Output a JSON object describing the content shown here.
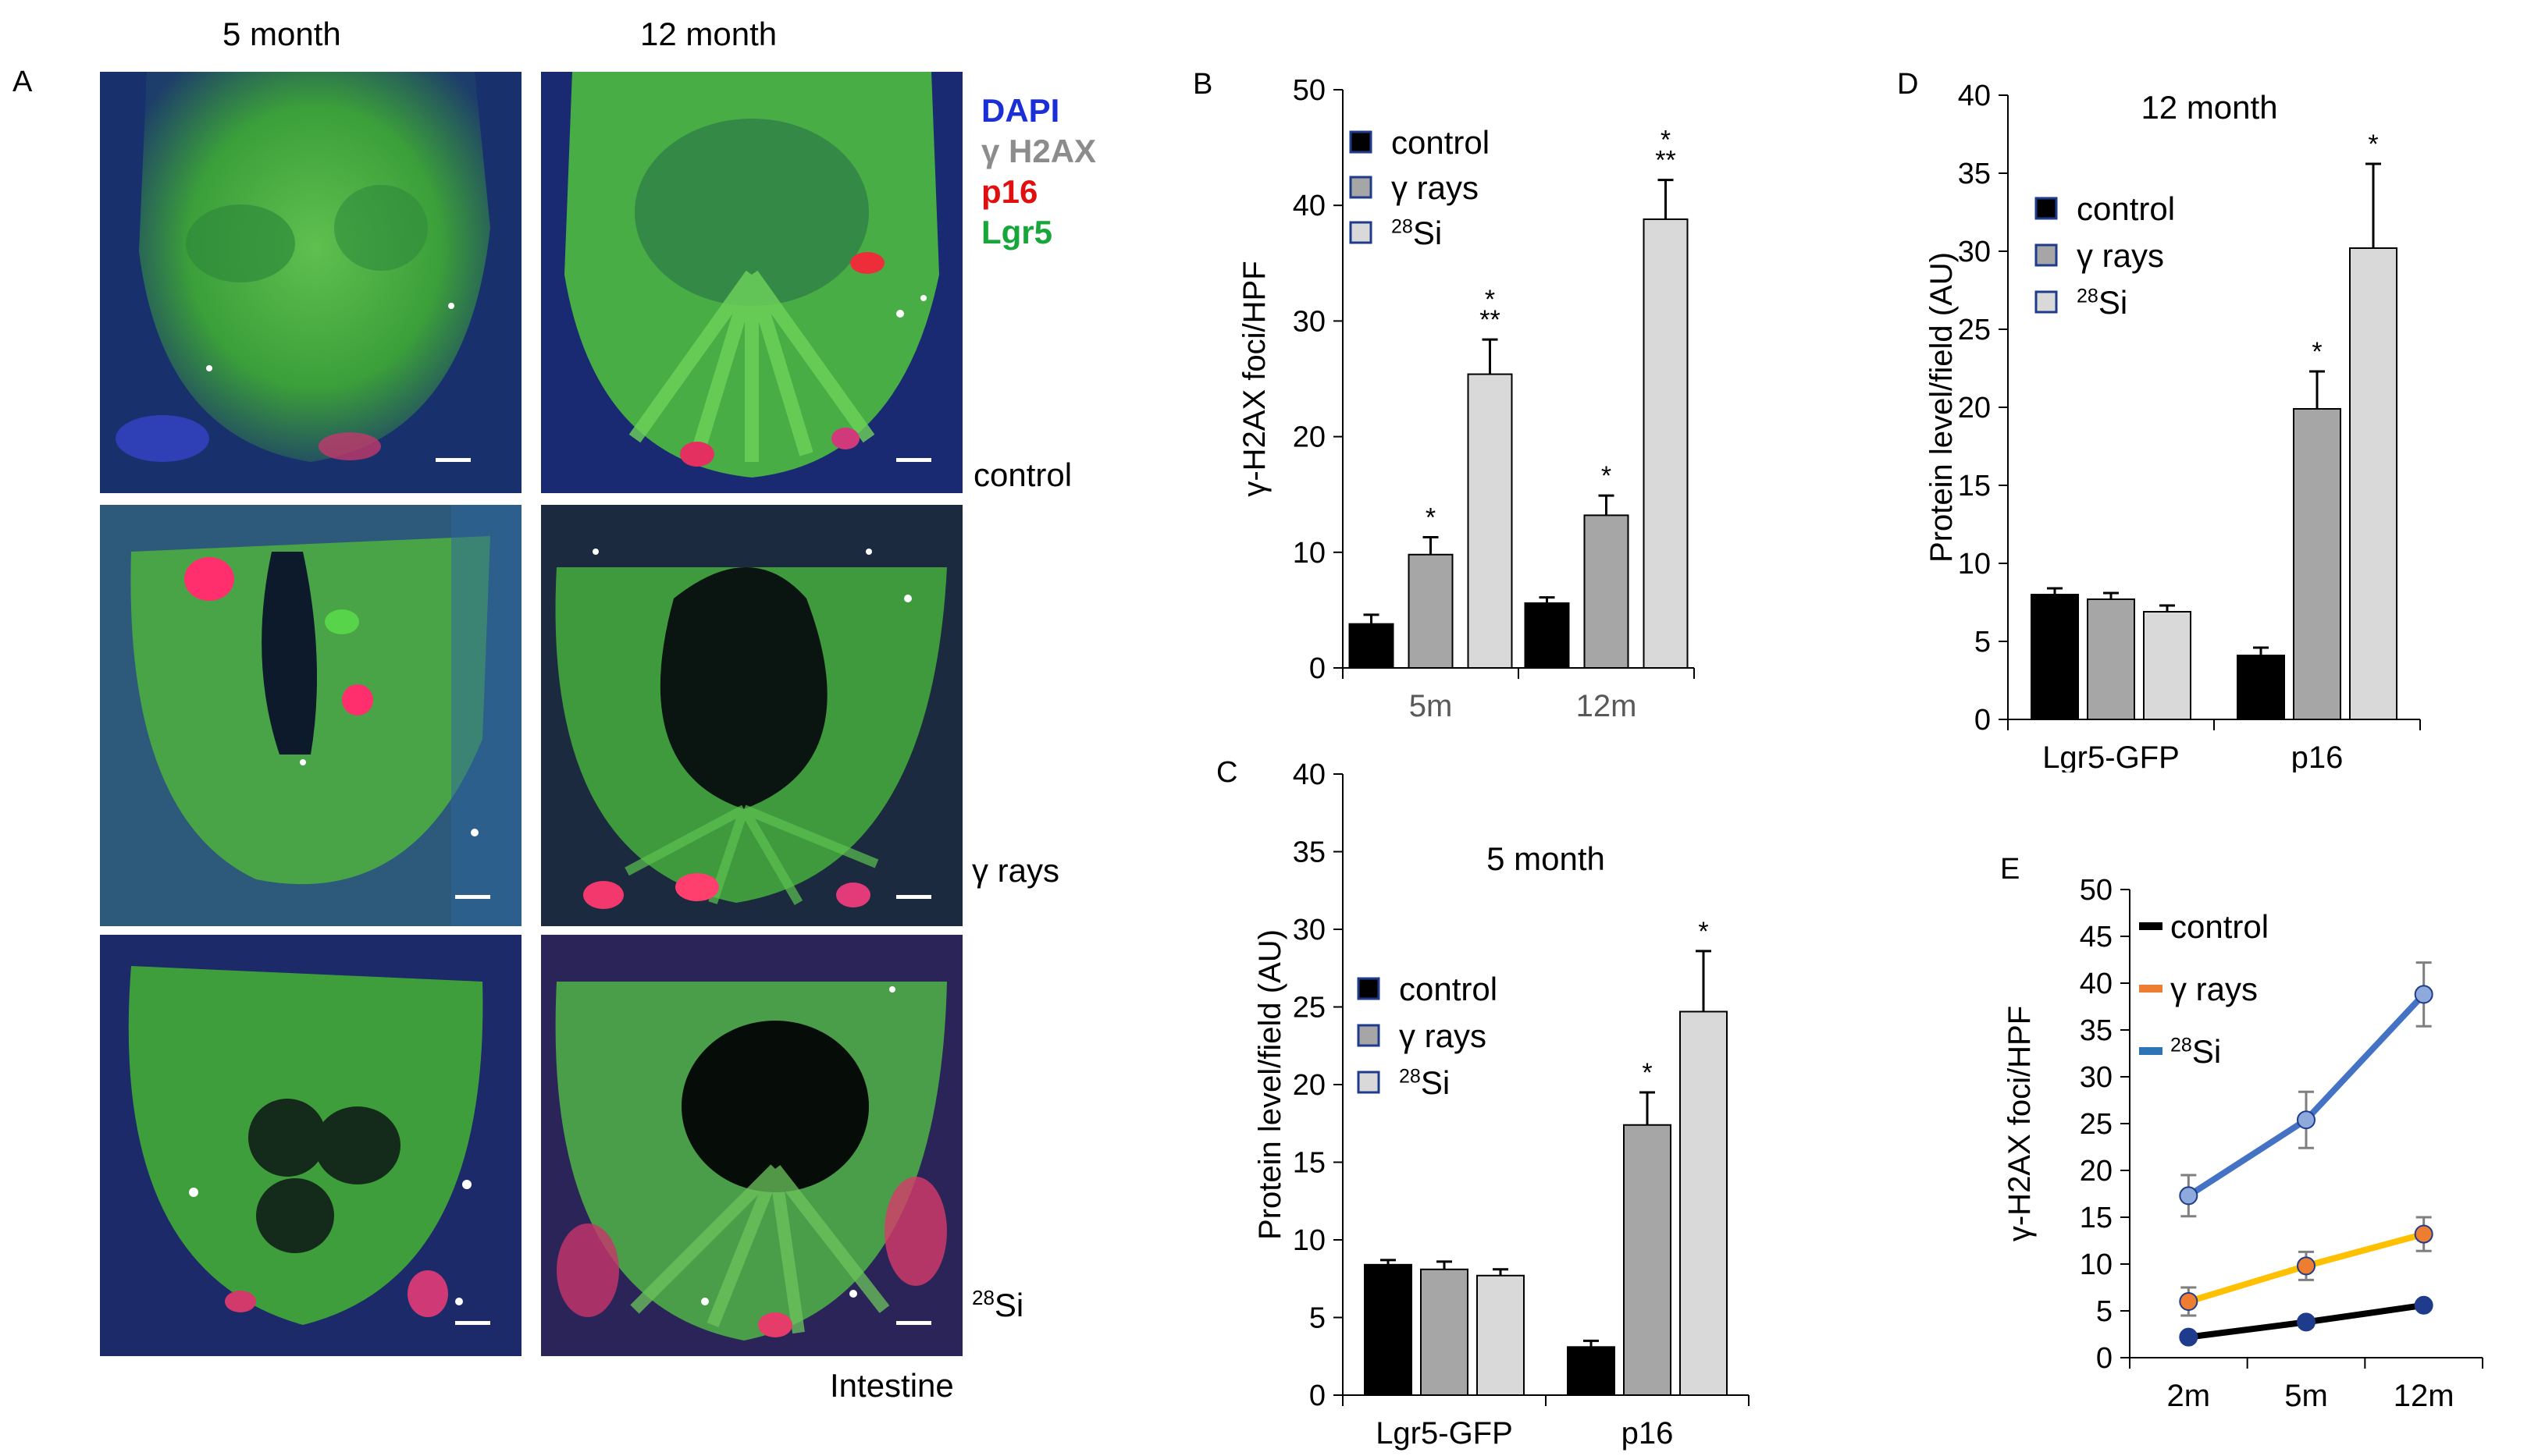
{
  "panel_a": {
    "panel_letter": "A",
    "column_titles": [
      "5 month",
      "12 month"
    ],
    "stain_legend": [
      {
        "label": "DAPI",
        "color": "#1b2fd6"
      },
      {
        "label": "γ H2AX",
        "color": "#8c8c8c"
      },
      {
        "label": "p16",
        "color": "#e01010"
      },
      {
        "label": "Lgr5",
        "color": "#17a63a"
      }
    ],
    "row_labels": [
      "control",
      "γ rays",
      "28Si"
    ],
    "tissue_label": "Intestine",
    "colors": {
      "background": "#14244a",
      "epithelium": "#3faa3c",
      "nuclei": "#2a35c8",
      "p16_cells": "#e8245a",
      "foci": "#ffffff"
    }
  },
  "chart_data": [
    {
      "id": "B",
      "panel_letter": "B",
      "type": "bar",
      "title": "",
      "xlabel": "",
      "ylabel": "γ-H2AX foci/HPF",
      "categories": [
        "5m",
        "12m"
      ],
      "ylim": [
        0,
        50
      ],
      "yticks": [
        0,
        10,
        20,
        30,
        40,
        50
      ],
      "legend": {
        "placement": "top-left",
        "entries": [
          "control",
          "γ rays",
          "28Si"
        ]
      },
      "series": [
        {
          "name": "control",
          "color": "#000000",
          "values": [
            3.8,
            5.6
          ],
          "errors": [
            0.8,
            0.5
          ],
          "annotations": [
            "",
            ""
          ]
        },
        {
          "name": "γ rays",
          "color": "#a6a6a6",
          "values": [
            9.8,
            13.2
          ],
          "errors": [
            1.5,
            1.7
          ],
          "annotations": [
            "*",
            "*"
          ]
        },
        {
          "name": "28Si",
          "color": "#d9d9d9",
          "values": [
            25.4,
            38.8
          ],
          "errors": [
            3.0,
            3.4
          ],
          "annotations": [
            "*\n**",
            "*\n**"
          ]
        }
      ]
    },
    {
      "id": "C",
      "panel_letter": "C",
      "type": "bar",
      "title": "5 month",
      "xlabel": "",
      "ylabel": "Protein level/field  (AU)",
      "categories": [
        "Lgr5-GFP",
        "p16"
      ],
      "ylim": [
        0,
        40
      ],
      "yticks": [
        0,
        5,
        10,
        15,
        20,
        25,
        30,
        35,
        40
      ],
      "legend": {
        "placement": "middle-left",
        "entries": [
          "control",
          "γ rays",
          "28Si"
        ]
      },
      "series": [
        {
          "name": "control",
          "color": "#000000",
          "values": [
            8.4,
            3.1
          ],
          "errors": [
            0.3,
            0.4
          ],
          "annotations": [
            "",
            ""
          ]
        },
        {
          "name": "γ rays",
          "color": "#a6a6a6",
          "values": [
            8.1,
            17.4
          ],
          "errors": [
            0.5,
            2.1
          ],
          "annotations": [
            "",
            "*"
          ]
        },
        {
          "name": "28Si",
          "color": "#d9d9d9",
          "values": [
            7.7,
            24.7
          ],
          "errors": [
            0.4,
            3.9
          ],
          "annotations": [
            "",
            "*"
          ]
        }
      ]
    },
    {
      "id": "D",
      "panel_letter": "D",
      "type": "bar",
      "title": "12 month",
      "xlabel": "",
      "ylabel": "Protein level/field  (AU)",
      "categories": [
        "Lgr5-GFP",
        "p16"
      ],
      "ylim": [
        0,
        40
      ],
      "yticks": [
        0,
        5,
        10,
        15,
        20,
        25,
        30,
        35,
        40
      ],
      "legend": {
        "placement": "top-left",
        "entries": [
          "control",
          "γ rays",
          "28Si"
        ]
      },
      "series": [
        {
          "name": "control",
          "color": "#000000",
          "values": [
            8.0,
            4.1
          ],
          "errors": [
            0.4,
            0.5
          ],
          "annotations": [
            "",
            ""
          ]
        },
        {
          "name": "γ rays",
          "color": "#a6a6a6",
          "values": [
            7.7,
            19.9
          ],
          "errors": [
            0.4,
            2.4
          ],
          "annotations": [
            "",
            "*"
          ]
        },
        {
          "name": "28Si",
          "color": "#d9d9d9",
          "values": [
            6.9,
            30.2
          ],
          "errors": [
            0.4,
            5.4
          ],
          "annotations": [
            "",
            "*"
          ]
        }
      ]
    },
    {
      "id": "E",
      "panel_letter": "E",
      "type": "line",
      "title": "",
      "xlabel": "",
      "ylabel": "γ-H2AX foci/HPF",
      "categories": [
        "2m",
        "5m",
        "12m"
      ],
      "ylim": [
        0,
        50
      ],
      "yticks": [
        0,
        5,
        10,
        15,
        20,
        25,
        30,
        35,
        40,
        45,
        50
      ],
      "legend": {
        "placement": "top-left",
        "entries": [
          "control",
          "γ rays",
          "28Si"
        ]
      },
      "series": [
        {
          "name": "control",
          "color": "#000000",
          "legend_color": "#000000",
          "marker_color": "#1f3b8c",
          "values": [
            2.2,
            3.8,
            5.6
          ],
          "errors": [
            0.3,
            0.5,
            0.4
          ]
        },
        {
          "name": "γ rays",
          "color": "#ffc000",
          "legend_color": "#ed7d31",
          "marker_color": "#ed7d31",
          "values": [
            6.0,
            9.8,
            13.2
          ],
          "errors": [
            1.5,
            1.5,
            1.8
          ]
        },
        {
          "name": "28Si",
          "color": "#4472c4",
          "legend_color": "#2e75b6",
          "marker_color": "#8ea9db",
          "values": [
            17.3,
            25.4,
            38.8
          ],
          "errors": [
            2.2,
            3.0,
            3.4
          ]
        }
      ]
    }
  ]
}
